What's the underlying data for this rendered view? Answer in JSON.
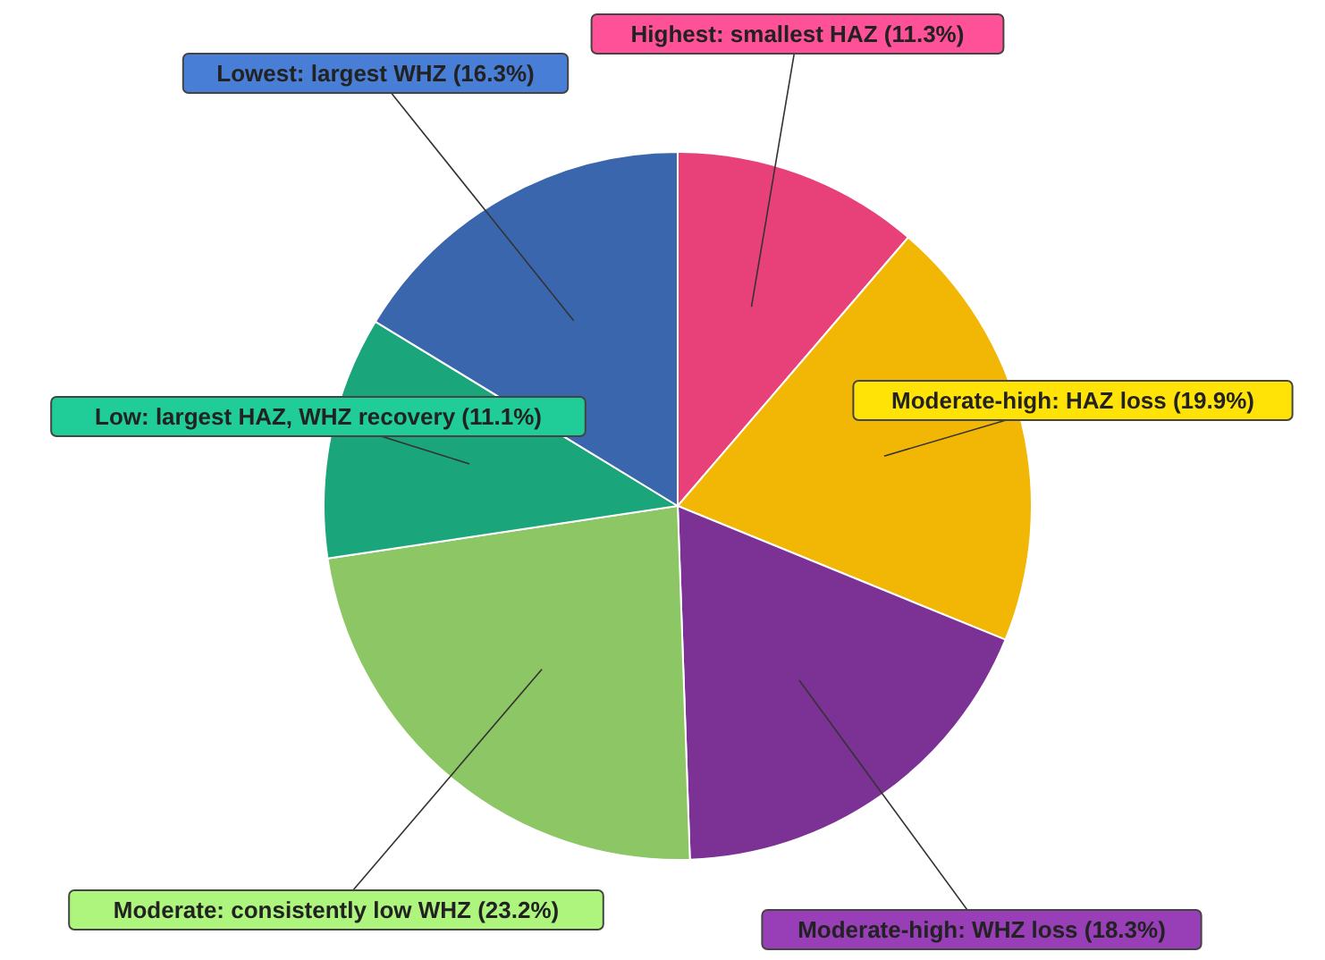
{
  "chart_data": {
    "type": "pie",
    "categories": [
      "Highest: smallest HAZ (11.3%)",
      "Moderate-high: HAZ loss (19.9%)",
      "Moderate-high: WHZ loss (18.3%)",
      "Moderate: consistently low WHZ (23.2%)",
      "Low: largest HAZ, WHZ recovery (11.1%)",
      "Lowest: largest WHZ (16.3%)"
    ],
    "values": [
      11.3,
      19.9,
      18.3,
      23.2,
      11.1,
      16.3
    ],
    "colors": [
      "#e8417a",
      "#f2b705",
      "#7b3294",
      "#8cc665",
      "#1aa57a",
      "#3a66ad"
    ]
  }
}
